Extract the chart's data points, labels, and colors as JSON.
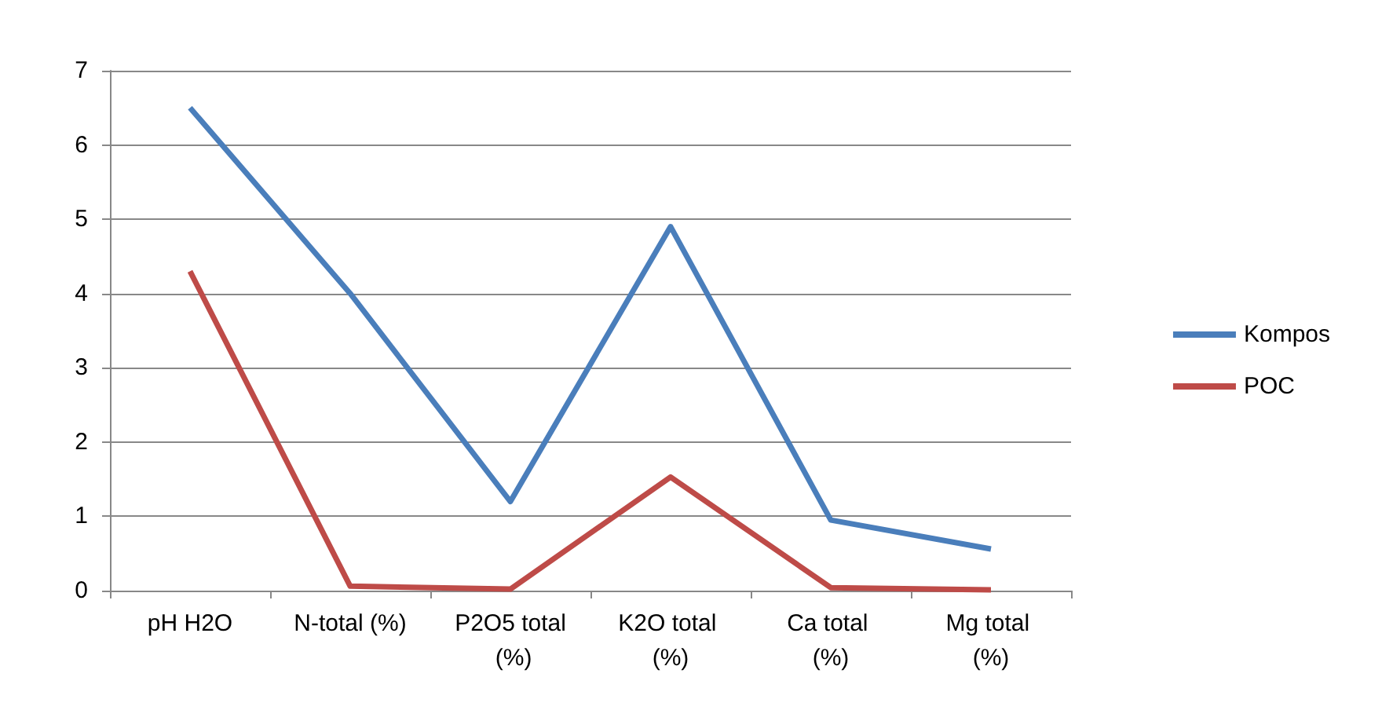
{
  "chart_data": {
    "type": "line",
    "categories": [
      "pH H2O",
      "N-total (%)",
      "P2O5 total (%)",
      "K2O total (%)",
      "Ca total (%)",
      "Mg total (%)"
    ],
    "series": [
      {
        "name": "Kompos",
        "color": "#4a7ebb",
        "values": [
          6.5,
          4.0,
          1.2,
          4.9,
          0.95,
          0.56
        ]
      },
      {
        "name": "POC",
        "color": "#be4b48",
        "values": [
          4.3,
          0.06,
          0.02,
          1.53,
          0.04,
          0.01
        ]
      }
    ],
    "ylim": [
      0,
      7
    ],
    "yticks": [
      0,
      1,
      2,
      3,
      4,
      5,
      6,
      7
    ],
    "grid": "y",
    "legend": "right",
    "marker": "none",
    "line_style": "solid"
  }
}
